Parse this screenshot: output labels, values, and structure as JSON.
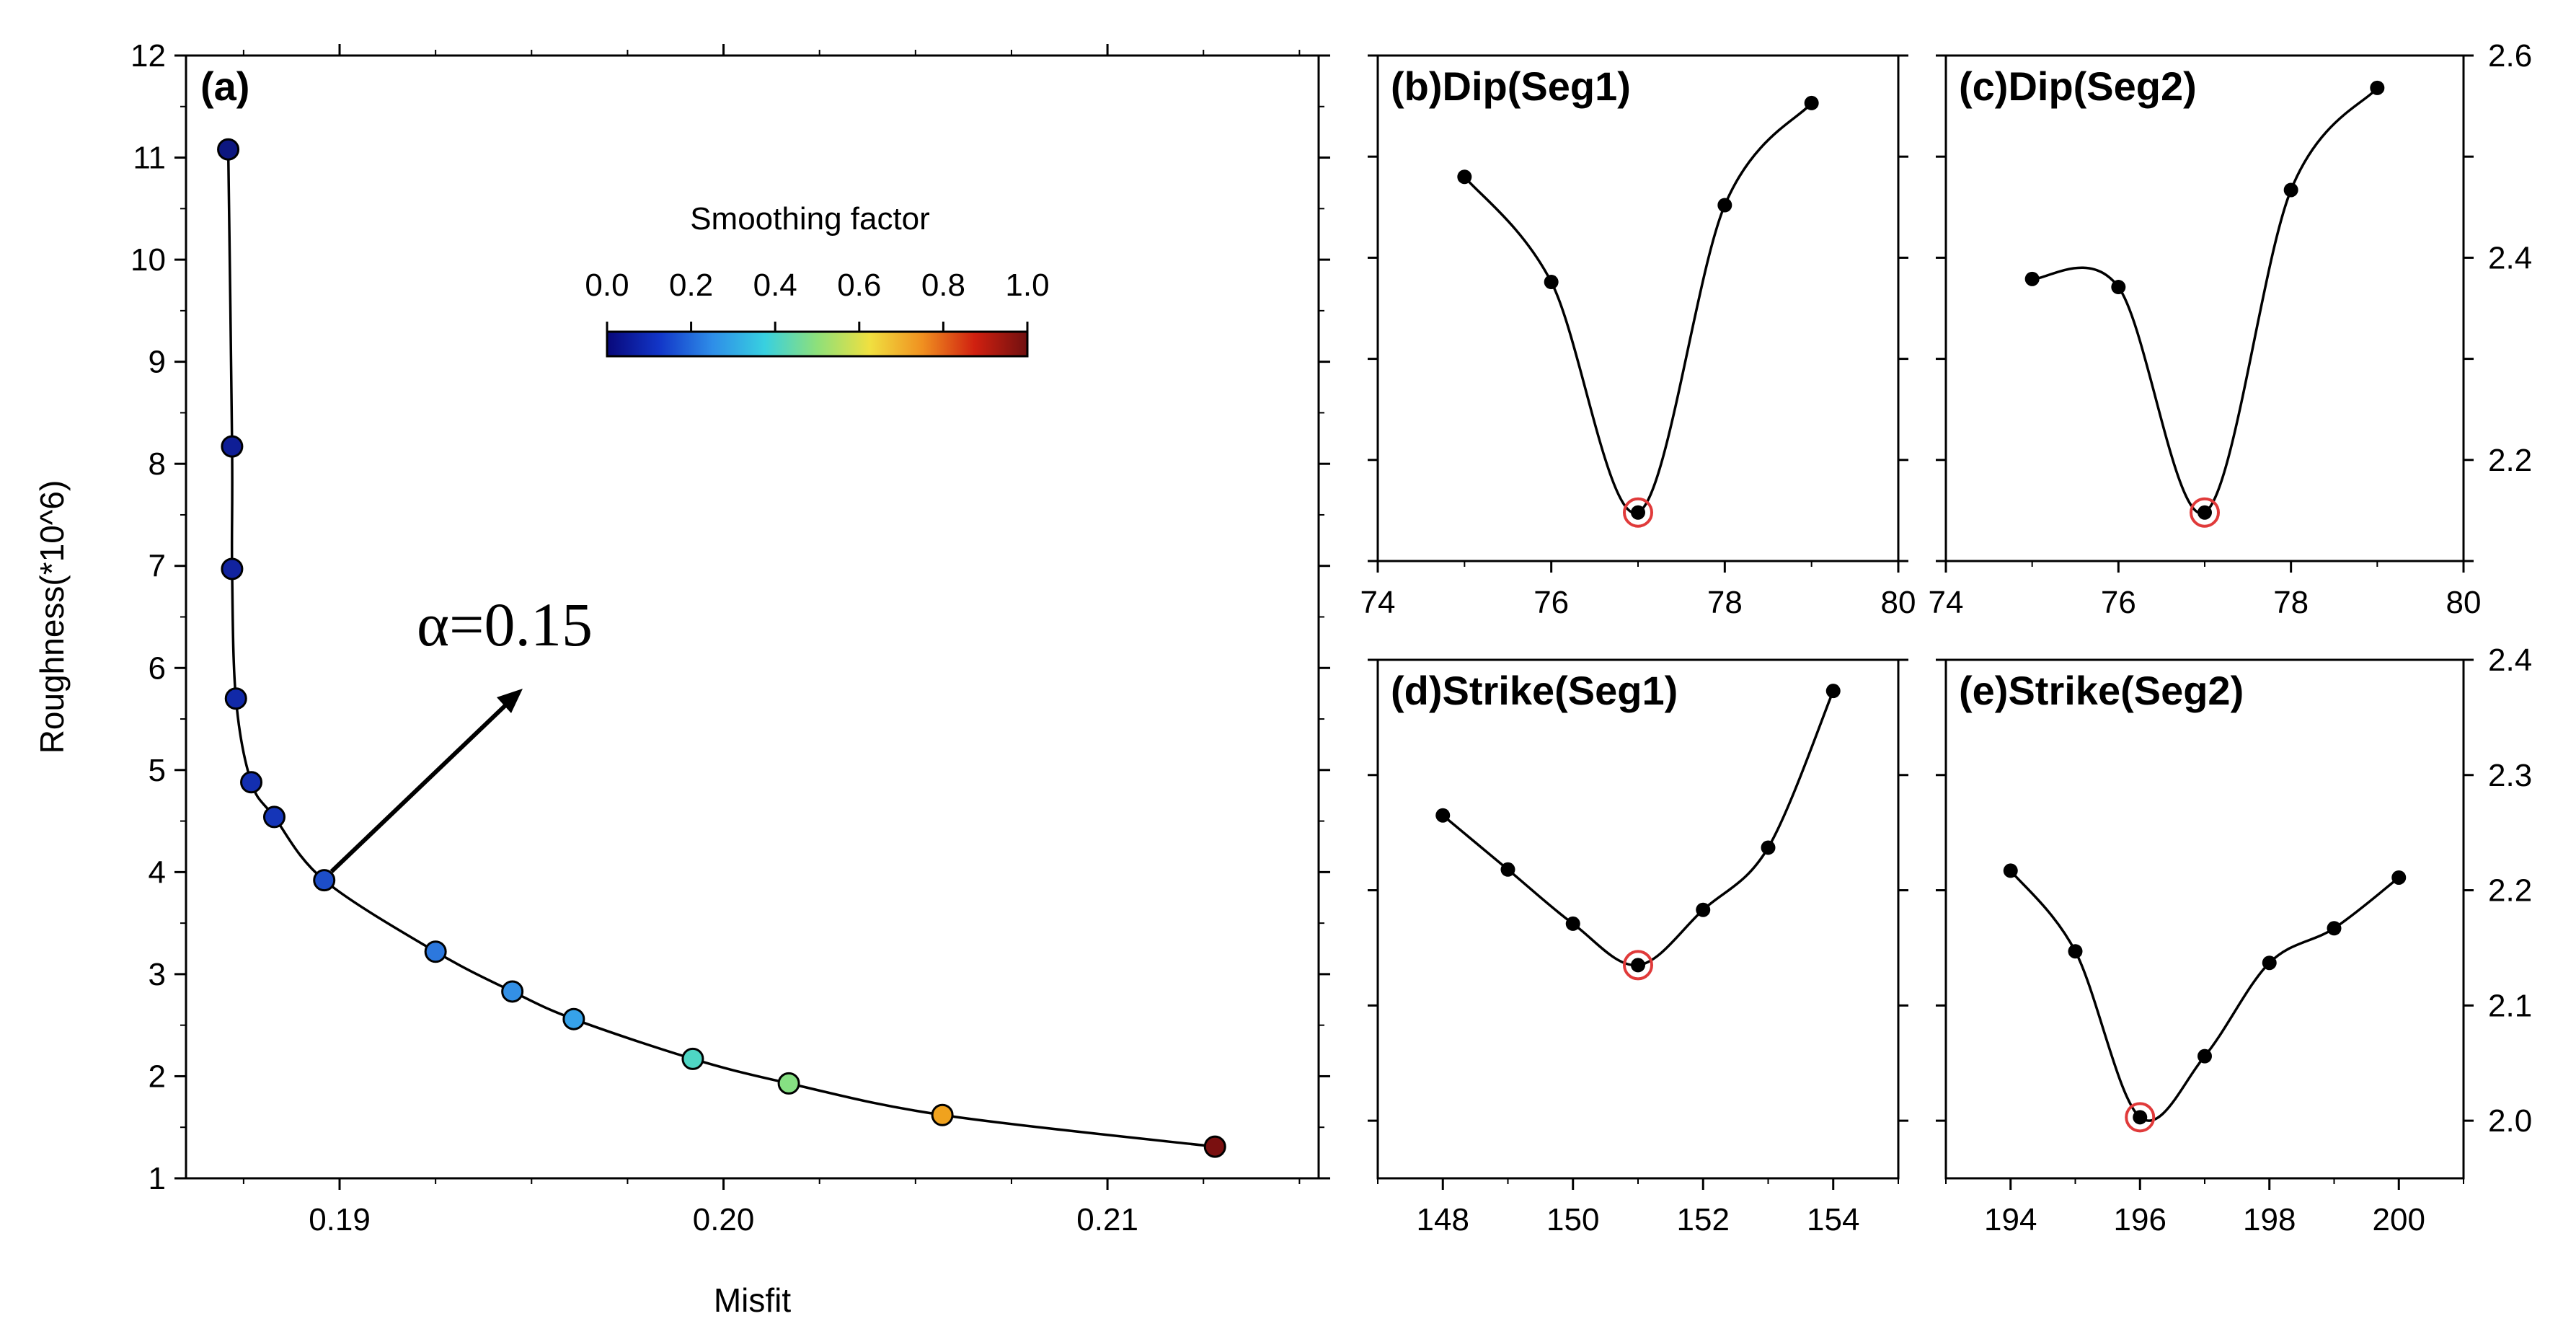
{
  "chart_data": [
    {
      "id": "a",
      "type": "scatter",
      "title": "(a)",
      "xlabel": "Misfit",
      "ylabel": "Roughness(*10^6)",
      "xlim": [
        0.186,
        0.2155
      ],
      "ylim": [
        1,
        12
      ],
      "xticks": [
        "0.19",
        "0.20",
        "0.21"
      ],
      "xtick_values": [
        0.19,
        0.2,
        0.21
      ],
      "yticks": [
        "1",
        "2",
        "3",
        "4",
        "5",
        "6",
        "7",
        "8",
        "9",
        "10",
        "11",
        "12"
      ],
      "ytick_values": [
        1,
        2,
        3,
        4,
        5,
        6,
        7,
        8,
        9,
        10,
        11,
        12
      ],
      "points": [
        {
          "x": 0.1871,
          "y": 11.08,
          "color": "#0d1780"
        },
        {
          "x": 0.1872,
          "y": 8.17,
          "color": "#0f1e96"
        },
        {
          "x": 0.1872,
          "y": 6.97,
          "color": "#11239f"
        },
        {
          "x": 0.1873,
          "y": 5.7,
          "color": "#1129a8"
        },
        {
          "x": 0.1877,
          "y": 4.88,
          "color": "#132fb0"
        },
        {
          "x": 0.1883,
          "y": 4.54,
          "color": "#1535b8"
        },
        {
          "x": 0.1896,
          "y": 3.92,
          "color": "#1d4ec8"
        },
        {
          "x": 0.1925,
          "y": 3.22,
          "color": "#2c78de"
        },
        {
          "x": 0.1945,
          "y": 2.83,
          "color": "#3390e6"
        },
        {
          "x": 0.1961,
          "y": 2.56,
          "color": "#36a2ea"
        },
        {
          "x": 0.1992,
          "y": 2.17,
          "color": "#4ed6c4"
        },
        {
          "x": 0.2017,
          "y": 1.93,
          "color": "#86e083"
        },
        {
          "x": 0.2057,
          "y": 1.62,
          "color": "#f0a21e"
        },
        {
          "x": 0.2128,
          "y": 1.31,
          "color": "#7a1010"
        }
      ],
      "annotation": "α=0.15",
      "colorbar": {
        "title": "Smoothing factor",
        "ticks": [
          "0.0",
          "0.2",
          "0.4",
          "0.6",
          "0.8",
          "1.0"
        ],
        "range": [
          0,
          1
        ],
        "colors": [
          "#08087a",
          "#1236c8",
          "#2e8de8",
          "#38d0e0",
          "#8ee07a",
          "#f0e040",
          "#f09020",
          "#d02010",
          "#701010"
        ]
      }
    },
    {
      "id": "b",
      "type": "line",
      "title": "(b)Dip(Seg1)",
      "xlim": [
        74,
        80
      ],
      "ylim": [
        2.1,
        2.6
      ],
      "xticks": [
        "74",
        "76",
        "78",
        "80"
      ],
      "xtick_values": [
        74,
        76,
        78,
        80
      ],
      "points": [
        [
          75,
          2.48
        ],
        [
          76,
          2.376
        ],
        [
          77,
          2.148
        ],
        [
          78,
          2.452
        ],
        [
          79,
          2.553
        ]
      ],
      "best": [
        77,
        2.148
      ]
    },
    {
      "id": "c",
      "type": "line",
      "title": "(c)Dip(Seg2)",
      "xlim": [
        74,
        80
      ],
      "ylim": [
        2.1,
        2.6
      ],
      "xticks": [
        "74",
        "76",
        "78",
        "80"
      ],
      "xtick_values": [
        74,
        76,
        78,
        80
      ],
      "yticks": [
        "2.2",
        "2.4",
        "2.6"
      ],
      "ytick_values": [
        2.2,
        2.4,
        2.6
      ],
      "points": [
        [
          75,
          2.379
        ],
        [
          76,
          2.371
        ],
        [
          77,
          2.148
        ],
        [
          78,
          2.467
        ],
        [
          79,
          2.568
        ]
      ],
      "best": [
        77,
        2.148
      ]
    },
    {
      "id": "d",
      "type": "line",
      "title": "(d)Strike(Seg1)",
      "xlim": [
        147,
        155
      ],
      "ylim": [
        1.95,
        2.4
      ],
      "xticks": [
        "148",
        "150",
        "152",
        "154"
      ],
      "xtick_values": [
        148,
        150,
        152,
        154
      ],
      "points": [
        [
          148,
          2.265
        ],
        [
          149,
          2.218
        ],
        [
          150,
          2.171
        ],
        [
          151,
          2.135
        ],
        [
          152,
          2.183
        ],
        [
          153,
          2.237
        ],
        [
          154,
          2.373
        ]
      ],
      "best": [
        151,
        2.135
      ]
    },
    {
      "id": "e",
      "type": "line",
      "title": "(e)Strike(Seg2)",
      "xlim": [
        193,
        201
      ],
      "ylim": [
        1.95,
        2.4
      ],
      "xticks": [
        "194",
        "196",
        "198",
        "200"
      ],
      "xtick_values": [
        194,
        196,
        198,
        200
      ],
      "yticks": [
        "2.0",
        "2.1",
        "2.2",
        "2.3",
        "2.4"
      ],
      "ytick_values": [
        2.0,
        2.1,
        2.2,
        2.3,
        2.4
      ],
      "points": [
        [
          194,
          2.217
        ],
        [
          195,
          2.147
        ],
        [
          196,
          2.003
        ],
        [
          197,
          2.056
        ],
        [
          198,
          2.137
        ],
        [
          199,
          2.167
        ],
        [
          200,
          2.211
        ]
      ],
      "best": [
        196,
        2.003
      ]
    }
  ]
}
